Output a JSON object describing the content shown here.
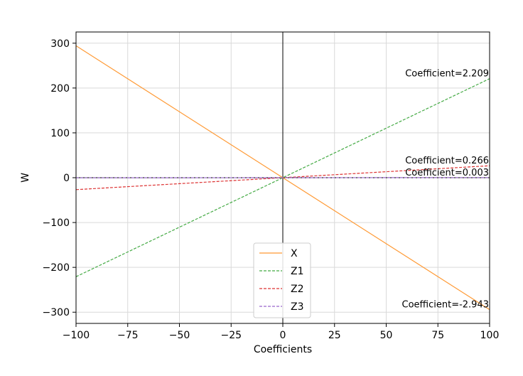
{
  "chart_data": {
    "type": "line",
    "xlabel": "Coefficients",
    "ylabel": "W",
    "xlim": [
      -100,
      100
    ],
    "ylim": [
      -325,
      325
    ],
    "xticks": [
      -100,
      -75,
      -50,
      -25,
      0,
      25,
      50,
      75,
      100
    ],
    "xtick_labels": [
      "−100",
      "−75",
      "−50",
      "−25",
      "0",
      "25",
      "50",
      "75",
      "100"
    ],
    "yticks": [
      -300,
      -200,
      -100,
      0,
      100,
      200,
      300
    ],
    "ytick_labels": [
      "−300",
      "−200",
      "−100",
      "0",
      "100",
      "200",
      "300"
    ],
    "grid": true,
    "legend_position": "bottom-center",
    "series": [
      {
        "name": "X",
        "x": [
          -100,
          100
        ],
        "y": [
          294.3,
          -294.3
        ],
        "color": "#ff9933",
        "dash": "solid"
      },
      {
        "name": "Z1",
        "x": [
          -100,
          100
        ],
        "y": [
          -220.9,
          220.9
        ],
        "color": "#44aa44",
        "dash": "dashed"
      },
      {
        "name": "Z2",
        "x": [
          -100,
          100
        ],
        "y": [
          -26.6,
          26.6
        ],
        "color": "#dd3333",
        "dash": "dashed"
      },
      {
        "name": "Z3",
        "x": [
          -100,
          100
        ],
        "y": [
          -0.3,
          0.3
        ],
        "color": "#9966cc",
        "dash": "dashed"
      }
    ],
    "annotations": [
      {
        "text": "Coefficient=2.209",
        "x": 100,
        "y": 220.9
      },
      {
        "text": "Coefficient=0.266",
        "x": 100,
        "y": 26.6
      },
      {
        "text": "Coefficient=0.003",
        "x": 100,
        "y": 0.3
      },
      {
        "text": "Coefficient=-2.943",
        "x": 100,
        "y": -294.3
      }
    ]
  }
}
